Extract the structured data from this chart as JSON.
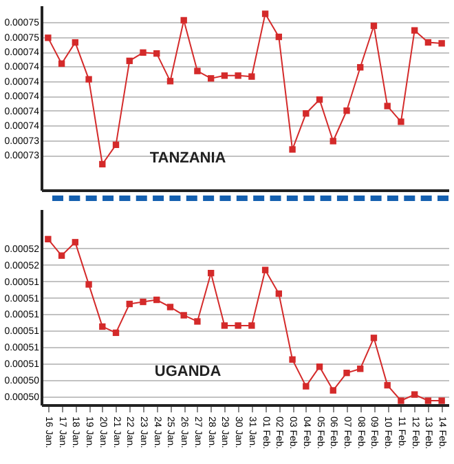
{
  "chart_data": [
    {
      "type": "line",
      "categories": [
        null,
        null,
        null,
        null,
        null,
        null,
        null,
        null,
        null,
        null,
        null,
        null,
        null,
        null,
        null,
        null,
        null,
        null,
        null,
        null,
        null,
        null,
        null,
        null,
        null,
        null,
        null,
        null,
        null,
        null
      ],
      "series": [
        {
          "color": "#d42a2a",
          "values": [
            0.0007455,
            0.0007427,
            0.000745,
            0.000741,
            0.0007318,
            0.0007339,
            0.000743,
            0.0007439,
            0.0007438,
            0.0007408,
            0.0007474,
            0.0007419,
            0.0007411,
            0.0007414,
            0.0007414,
            0.0007413,
            0.0007481,
            0.0007456,
            0.0007334,
            0.0007373,
            0.0007388,
            0.0007343,
            0.0007376,
            0.0007423,
            0.0007468,
            0.0007381,
            0.0007364,
            0.0007463,
            0.000745,
            0.0007449
          ]
        }
      ],
      "ylim": [
        0.000729,
        0.000749
      ],
      "yticks": [
        {
          "value": 0.0007472,
          "label": "0.00075"
        },
        {
          "value": 0.0007456,
          "label": "0.00075"
        },
        {
          "value": 0.000744,
          "label": "0.00074"
        },
        {
          "value": 0.0007424,
          "label": "0.00074"
        },
        {
          "value": 0.0007408,
          "label": "0.00074"
        },
        {
          "value": 0.0007392,
          "label": "0.00074"
        },
        {
          "value": 0.0007376,
          "label": "0.00074"
        },
        {
          "value": 0.000736,
          "label": "0.00074"
        },
        {
          "value": 0.0007344,
          "label": "0.00073"
        },
        {
          "value": 0.0007328,
          "label": "0.00073"
        }
      ],
      "annotations": [
        "TANZANIA"
      ],
      "grid": "y",
      "marker": "square",
      "tick_labels": "y"
    },
    {
      "type": "line",
      "categories": [
        "16 Jan.",
        "17 Jan.",
        "18 Jan.",
        "19 Jan.",
        "20 Jan.",
        "21 Jan.",
        "22 Jan.",
        "23 Jan.",
        "24 Jan.",
        "25 Jan.",
        "26 Jan.",
        "27 Jan.",
        "28 Jan.",
        "29 Jan.",
        "30 Jan.",
        "31 Jan.",
        "01 Feb.",
        "02 Feb.",
        "03 Feb.",
        "04 Feb.",
        "05 Feb.",
        "06 Feb.",
        "07 Feb.",
        "08 Feb.",
        "09 Feb.",
        "10 Feb.",
        "11 Feb.",
        "12 Feb.",
        "13 Feb.",
        "14 Feb."
      ],
      "series": [
        {
          "color": "#d42a2a",
          "values": [
            0.0005181,
            0.0005165,
            0.0005178,
            0.0005137,
            0.0005096,
            0.000509,
            0.0005118,
            0.000512,
            0.0005122,
            0.0005115,
            0.0005107,
            0.0005101,
            0.0005148,
            0.0005097,
            0.0005097,
            0.0005097,
            0.0005151,
            0.0005128,
            0.0005064,
            0.0005038,
            0.0005057,
            0.0005034,
            0.0005051,
            0.0005055,
            0.0005085,
            0.0005039,
            0.0005024,
            0.000503,
            0.0005024,
            0.0005024
          ]
        }
      ],
      "ylim": [
        0.000502,
        0.000521
      ],
      "yticks": [
        {
          "value": 0.0005172,
          "label": "0.00052"
        },
        {
          "value": 0.0005156,
          "label": "0.00052"
        },
        {
          "value": 0.000514,
          "label": "0.00051"
        },
        {
          "value": 0.0005124,
          "label": "0.00051"
        },
        {
          "value": 0.0005108,
          "label": "0.00051"
        },
        {
          "value": 0.0005092,
          "label": "0.00051"
        },
        {
          "value": 0.0005076,
          "label": "0.00051"
        },
        {
          "value": 0.000506,
          "label": "0.00051"
        },
        {
          "value": 0.0005044,
          "label": "0.00050"
        },
        {
          "value": 0.0005028,
          "label": "0.00050"
        }
      ],
      "annotations": [
        "UGANDA"
      ],
      "grid": "y",
      "marker": "square"
    }
  ]
}
